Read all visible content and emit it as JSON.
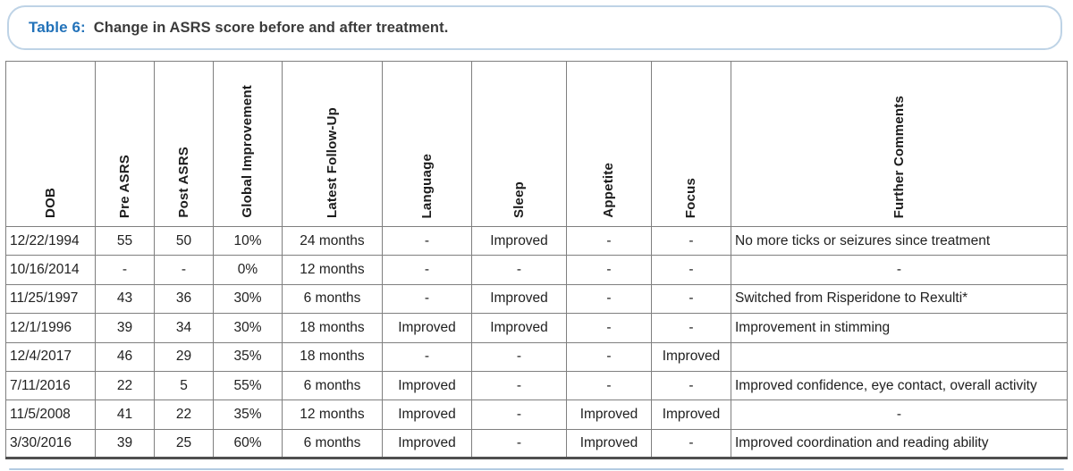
{
  "title": {
    "label": "Table 6:",
    "text": "Change in ASRS score before and after treatment."
  },
  "table": {
    "columns": [
      "DOB",
      "Pre ASRS",
      "Post ASRS",
      "Global Improvement",
      "Latest Follow-Up",
      "Language",
      "Sleep",
      "Appetite",
      "Focus",
      "Further Comments"
    ],
    "rows": [
      [
        "12/22/1994",
        "55",
        "50",
        "10%",
        "24 months",
        "-",
        "Improved",
        "-",
        "-",
        "No more ticks or seizures since treatment"
      ],
      [
        "10/16/2014",
        "-",
        "-",
        "0%",
        "12 months",
        "-",
        "-",
        "-",
        "-",
        "-"
      ],
      [
        "11/25/1997",
        "43",
        "36",
        "30%",
        "6 months",
        "-",
        "Improved",
        "-",
        "-",
        "Switched from Risperidone to Rexulti*"
      ],
      [
        "12/1/1996",
        "39",
        "34",
        "30%",
        "18 months",
        "Improved",
        "Improved",
        "-",
        "-",
        "Improvement in stimming"
      ],
      [
        "12/4/2017",
        "46",
        "29",
        "35%",
        "18 months",
        "-",
        "-",
        "-",
        "Improved",
        ""
      ],
      [
        "7/11/2016",
        "22",
        "5",
        "55%",
        "6 months",
        "Improved",
        "-",
        "-",
        "-",
        "Improved confidence, eye contact, overall activity"
      ],
      [
        "11/5/2008",
        "41",
        "22",
        "35%",
        "12 months",
        "Improved",
        "-",
        "Improved",
        "Improved",
        "-"
      ],
      [
        "3/30/2016",
        "39",
        "25",
        "60%",
        "6 months",
        "Improved",
        "-",
        "Improved",
        "-",
        "Improved coordination and reading ability"
      ]
    ]
  },
  "colors": {
    "title_accent": "#2272b9",
    "title_text": "#3b3b3b",
    "table_border": "#7f7f7f",
    "capsule_border": "#bed3e6",
    "bottom_rule": "#b3cbe2"
  }
}
